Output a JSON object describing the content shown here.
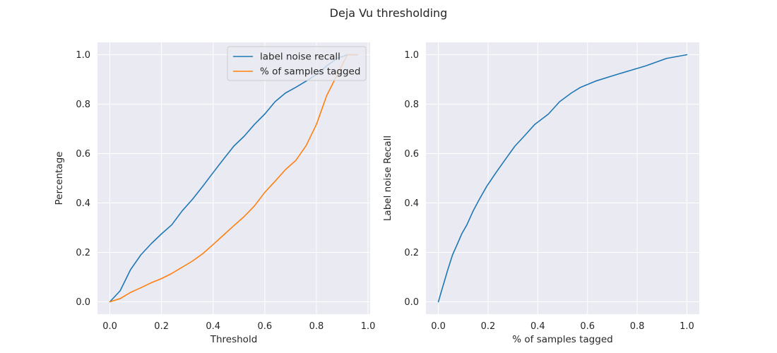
{
  "figure": {
    "suptitle": "Deja Vu thresholding"
  },
  "colors": {
    "background": "#eaeaf2",
    "grid": "#ffffff",
    "blue": "#1f77b4",
    "orange": "#ff7f0e"
  },
  "chart_data": [
    {
      "type": "line",
      "xlabel": "Threshold",
      "ylabel": "Percentage",
      "xlim": [
        -0.048,
        1.008
      ],
      "ylim": [
        -0.05,
        1.05
      ],
      "xticks": [
        "0.0",
        "0.2",
        "0.4",
        "0.6",
        "0.8",
        "1.0"
      ],
      "yticks": [
        "0.0",
        "0.2",
        "0.4",
        "0.6",
        "0.8",
        "1.0"
      ],
      "grid": true,
      "legend": "top-right",
      "series": [
        {
          "name": "label noise recall",
          "color": "#1f77b4",
          "x": [
            0.0,
            0.04,
            0.08,
            0.12,
            0.16,
            0.2,
            0.24,
            0.28,
            0.32,
            0.36,
            0.4,
            0.44,
            0.48,
            0.52,
            0.56,
            0.6,
            0.64,
            0.68,
            0.72,
            0.76,
            0.8,
            0.84,
            0.88,
            0.92,
            0.96
          ],
          "y": [
            0.0,
            0.045,
            0.13,
            0.19,
            0.235,
            0.275,
            0.312,
            0.368,
            0.415,
            0.468,
            0.523,
            0.577,
            0.63,
            0.67,
            0.718,
            0.76,
            0.81,
            0.845,
            0.868,
            0.893,
            0.92,
            0.955,
            0.985,
            1.0,
            1.0
          ]
        },
        {
          "name": "% of samples tagged",
          "color": "#ff7f0e",
          "x": [
            0.0,
            0.04,
            0.08,
            0.12,
            0.16,
            0.2,
            0.24,
            0.28,
            0.32,
            0.36,
            0.4,
            0.44,
            0.48,
            0.52,
            0.56,
            0.6,
            0.64,
            0.68,
            0.72,
            0.76,
            0.8,
            0.84,
            0.88,
            0.92,
            0.96
          ],
          "y": [
            0.0,
            0.013,
            0.038,
            0.057,
            0.077,
            0.094,
            0.115,
            0.14,
            0.165,
            0.195,
            0.232,
            0.27,
            0.308,
            0.345,
            0.388,
            0.443,
            0.488,
            0.535,
            0.572,
            0.632,
            0.718,
            0.835,
            0.918,
            1.0,
            1.0
          ]
        }
      ]
    },
    {
      "type": "line",
      "xlabel": "% of samples tagged",
      "ylabel": "Label noise Recall",
      "xlim": [
        -0.05,
        1.05
      ],
      "ylim": [
        -0.05,
        1.05
      ],
      "xticks": [
        "0.0",
        "0.2",
        "0.4",
        "0.6",
        "0.8",
        "1.0"
      ],
      "yticks": [
        "0.0",
        "0.2",
        "0.4",
        "0.6",
        "0.8",
        "1.0"
      ],
      "grid": true,
      "legend": "none",
      "series": [
        {
          "color": "#1f77b4",
          "x": [
            0.0,
            0.013,
            0.038,
            0.057,
            0.077,
            0.094,
            0.115,
            0.14,
            0.165,
            0.195,
            0.232,
            0.27,
            0.308,
            0.345,
            0.388,
            0.443,
            0.488,
            0.535,
            0.572,
            0.632,
            0.718,
            0.835,
            0.918,
            1.0
          ],
          "y": [
            0.0,
            0.045,
            0.13,
            0.19,
            0.235,
            0.275,
            0.312,
            0.368,
            0.415,
            0.468,
            0.523,
            0.577,
            0.63,
            0.67,
            0.718,
            0.76,
            0.81,
            0.845,
            0.868,
            0.893,
            0.92,
            0.955,
            0.985,
            1.0
          ]
        }
      ]
    }
  ]
}
